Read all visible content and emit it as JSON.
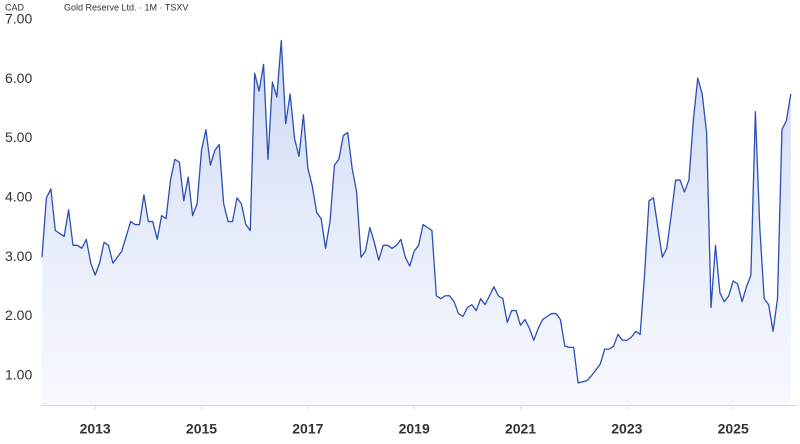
{
  "chart_data": {
    "type": "area_line",
    "currency": "CAD",
    "title": "Gold Reserve Ltd. · 1M · TSXV",
    "color": "#2b4fb3",
    "xlim": [
      2012.0,
      2026.2
    ],
    "xticks": [
      2013,
      2015,
      2017,
      2019,
      2021,
      2023,
      2025
    ],
    "ylim": [
      0.5,
      7.2
    ],
    "yticks": [
      {
        "value": 1,
        "label": "1.00"
      },
      {
        "value": 2,
        "label": "2.00"
      },
      {
        "value": 3,
        "label": "3.00"
      },
      {
        "value": 4,
        "label": "4.00"
      },
      {
        "value": 5,
        "label": "5.00"
      },
      {
        "value": 6,
        "label": "6.00"
      },
      {
        "value": 7,
        "label": "7.00"
      }
    ],
    "x": [
      2012.0,
      2012.083,
      2012.167,
      2012.25,
      2012.333,
      2012.417,
      2012.5,
      2012.583,
      2012.667,
      2012.75,
      2012.833,
      2012.917,
      2013.0,
      2013.083,
      2013.167,
      2013.25,
      2013.333,
      2013.417,
      2013.5,
      2013.583,
      2013.667,
      2013.75,
      2013.833,
      2013.917,
      2014.0,
      2014.083,
      2014.167,
      2014.25,
      2014.333,
      2014.417,
      2014.5,
      2014.583,
      2014.667,
      2014.75,
      2014.833,
      2014.917,
      2015.0,
      2015.083,
      2015.167,
      2015.25,
      2015.333,
      2015.417,
      2015.5,
      2015.583,
      2015.667,
      2015.75,
      2015.833,
      2015.917,
      2016.0,
      2016.083,
      2016.167,
      2016.25,
      2016.333,
      2016.417,
      2016.5,
      2016.583,
      2016.667,
      2016.75,
      2016.833,
      2016.917,
      2017.0,
      2017.083,
      2017.167,
      2017.25,
      2017.333,
      2017.417,
      2017.5,
      2017.583,
      2017.667,
      2017.75,
      2017.833,
      2017.917,
      2018.0,
      2018.083,
      2018.167,
      2018.25,
      2018.333,
      2018.417,
      2018.5,
      2018.583,
      2018.667,
      2018.75,
      2018.833,
      2018.917,
      2019.0,
      2019.083,
      2019.167,
      2019.25,
      2019.333,
      2019.417,
      2019.5,
      2019.583,
      2019.667,
      2019.75,
      2019.833,
      2019.917,
      2020.0,
      2020.083,
      2020.167,
      2020.25,
      2020.333,
      2020.417,
      2020.5,
      2020.583,
      2020.667,
      2020.75,
      2020.833,
      2020.917,
      2021.0,
      2021.083,
      2021.167,
      2021.25,
      2021.333,
      2021.417,
      2021.5,
      2021.583,
      2021.667,
      2021.75,
      2021.833,
      2021.917,
      2022.0,
      2022.083,
      2022.167,
      2022.25,
      2022.333,
      2022.417,
      2022.5,
      2022.583,
      2022.667,
      2022.75,
      2022.833,
      2022.917,
      2023.0,
      2023.083,
      2023.167,
      2023.25,
      2023.333,
      2023.417,
      2023.5,
      2023.583,
      2023.667,
      2023.75,
      2023.833,
      2023.917,
      2024.0,
      2024.083,
      2024.167,
      2024.25,
      2024.333,
      2024.417,
      2024.5,
      2024.583,
      2024.667,
      2024.75,
      2024.833,
      2024.917,
      2025.0,
      2025.083,
      2025.167,
      2025.25,
      2025.333,
      2025.417,
      2025.5,
      2025.583,
      2025.667,
      2025.75,
      2025.833,
      2025.917,
      2026.0,
      2026.083
    ],
    "values": [
      3.0,
      4.0,
      4.15,
      3.45,
      3.4,
      3.35,
      3.8,
      3.2,
      3.2,
      3.15,
      3.3,
      2.9,
      2.7,
      2.9,
      3.25,
      3.2,
      2.9,
      3.0,
      3.1,
      3.35,
      3.6,
      3.55,
      3.55,
      4.05,
      3.6,
      3.6,
      3.3,
      3.7,
      3.65,
      4.3,
      4.65,
      4.6,
      3.95,
      4.35,
      3.7,
      3.9,
      4.8,
      5.15,
      4.55,
      4.8,
      4.9,
      3.9,
      3.6,
      3.6,
      4.0,
      3.9,
      3.55,
      3.45,
      6.1,
      5.8,
      6.25,
      4.65,
      5.95,
      5.7,
      6.65,
      5.25,
      5.75,
      5.0,
      4.7,
      5.4,
      4.5,
      4.2,
      3.75,
      3.65,
      3.15,
      3.6,
      4.55,
      4.65,
      5.05,
      5.1,
      4.5,
      4.1,
      3.0,
      3.1,
      3.5,
      3.25,
      2.95,
      3.2,
      3.2,
      3.15,
      3.2,
      3.3,
      3.0,
      2.85,
      3.1,
      3.2,
      3.55,
      3.5,
      3.45,
      2.35,
      2.3,
      2.35,
      2.35,
      2.25,
      2.05,
      2.0,
      2.15,
      2.2,
      2.1,
      2.3,
      2.2,
      2.35,
      2.5,
      2.35,
      2.3,
      1.9,
      2.1,
      2.1,
      1.85,
      1.95,
      1.8,
      1.6,
      1.8,
      1.95,
      2.0,
      2.05,
      2.05,
      1.95,
      1.5,
      1.48,
      1.48,
      0.88,
      0.9,
      0.92,
      1.0,
      1.1,
      1.2,
      1.45,
      1.45,
      1.5,
      1.7,
      1.6,
      1.6,
      1.65,
      1.75,
      1.7,
      2.7,
      3.95,
      4.0,
      3.5,
      3.0,
      3.15,
      3.7,
      4.3,
      4.3,
      4.1,
      4.3,
      5.3,
      6.02,
      5.75,
      5.1,
      2.15,
      3.2,
      2.4,
      2.25,
      2.35,
      2.6,
      2.55,
      2.25,
      2.5,
      2.7,
      5.45,
      3.5,
      2.3,
      2.2,
      1.75,
      2.3,
      5.15,
      5.3,
      5.75
    ]
  }
}
